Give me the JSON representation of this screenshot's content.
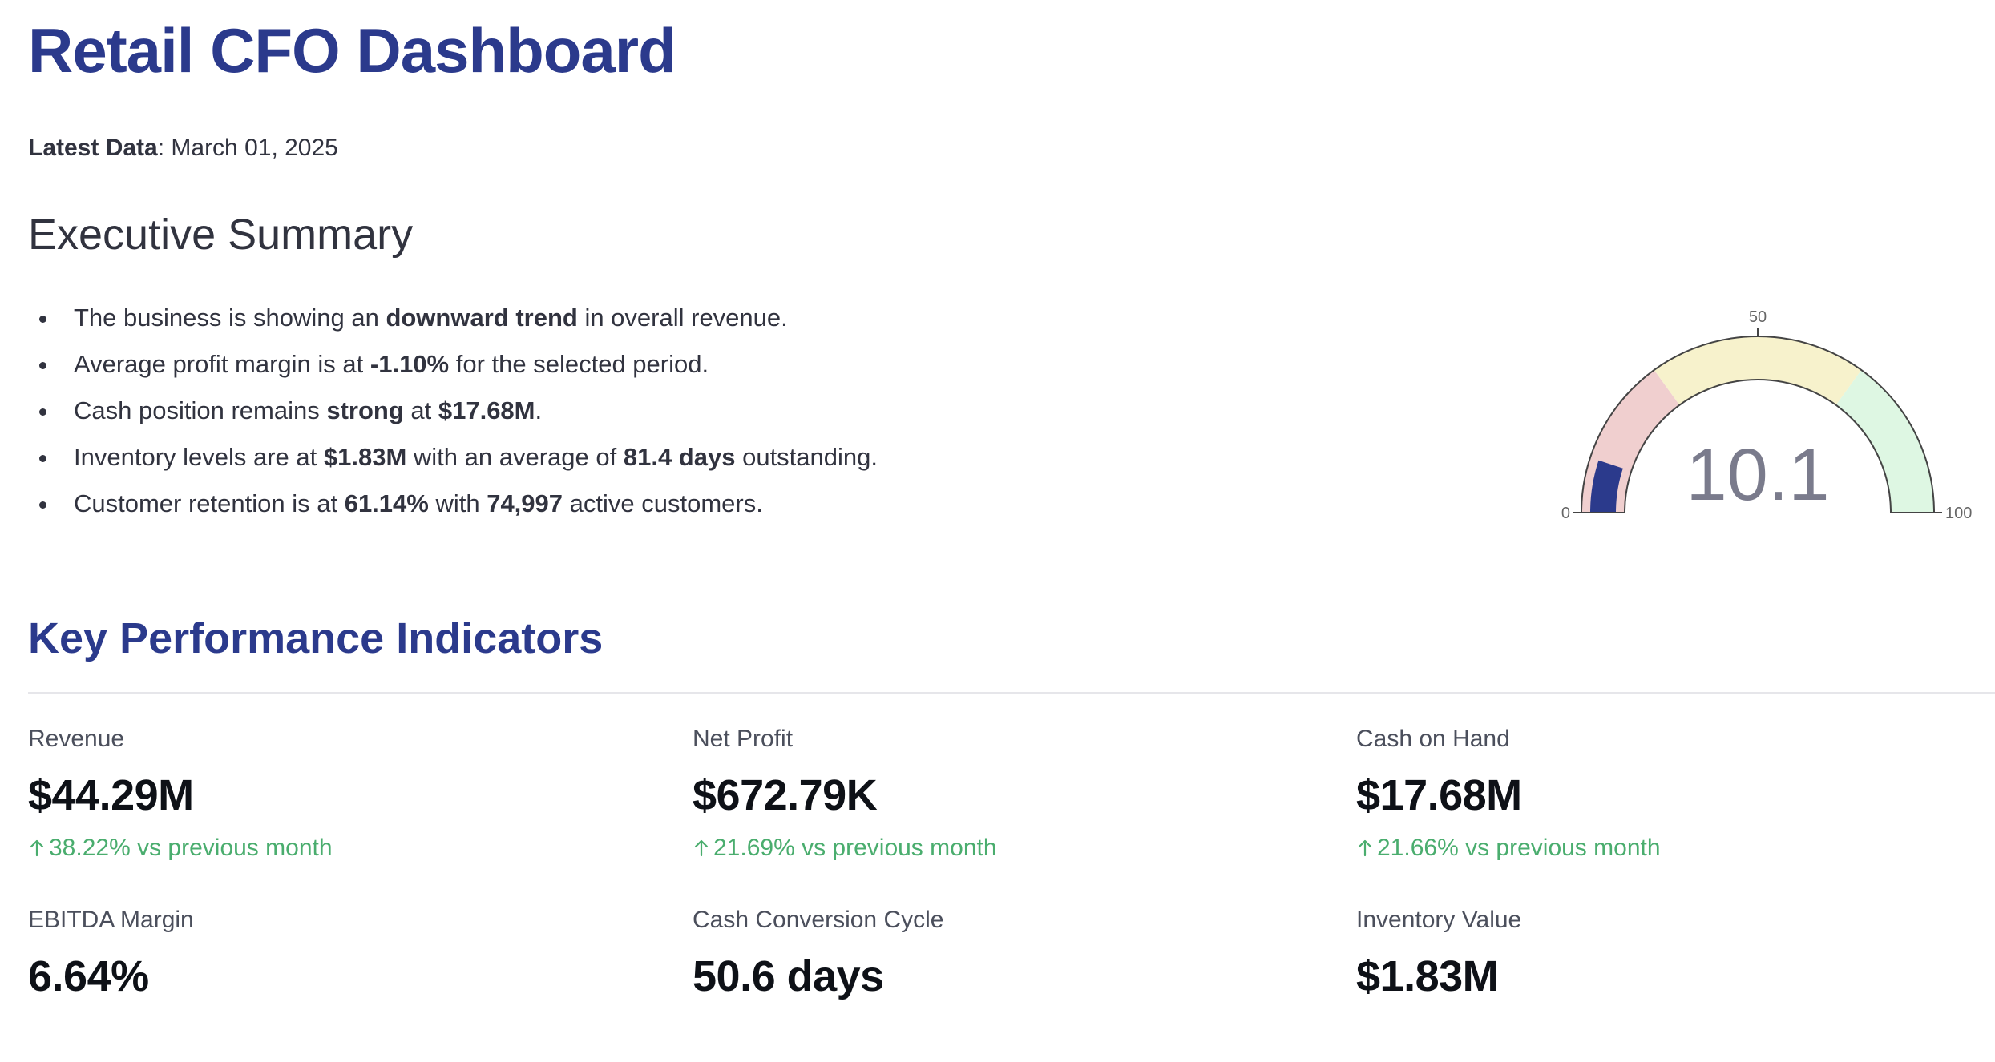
{
  "header": {
    "title": "Retail CFO Dashboard",
    "latest_label": "Latest Data",
    "latest_value": ": March 01, 2025"
  },
  "summary": {
    "title": "Executive Summary",
    "bullets": [
      {
        "a": "The business is showing an ",
        "b": "downward trend",
        "c": " in overall revenue."
      },
      {
        "a": "Average profit margin is at ",
        "b": "-1.10%",
        "c": " for the selected period."
      },
      {
        "a": "Cash position remains ",
        "b": "strong",
        "c": " at ",
        "d": "$17.68M",
        "e": "."
      },
      {
        "a": "Inventory levels are at ",
        "b": "$1.83M",
        "c": " with an average of ",
        "d": "81.4 days",
        "e": " outstanding."
      },
      {
        "a": "Customer retention is at ",
        "b": "61.14%",
        "c": " with ",
        "d": "74,997",
        "e": " active customers."
      }
    ]
  },
  "gauge": {
    "value": 10.1,
    "value_label": "10.1",
    "min": 0,
    "max": 100,
    "tick_min": "0",
    "tick_mid": "50",
    "tick_max": "100",
    "steps": [
      {
        "from": 0,
        "to": 30,
        "color": "#f0cfcf"
      },
      {
        "from": 30,
        "to": 70,
        "color": "#f7f2cc"
      },
      {
        "from": 70,
        "to": 100,
        "color": "#def7e3"
      }
    ],
    "bar_color": "#2b3a8c",
    "text_color": "#7a7b8c"
  },
  "kpi": {
    "title": "Key Performance Indicators",
    "metrics": [
      {
        "label": "Revenue",
        "value": "$44.29M",
        "delta": "38.22% vs previous month"
      },
      {
        "label": "Net Profit",
        "value": "$672.79K",
        "delta": "21.69% vs previous month"
      },
      {
        "label": "Cash on Hand",
        "value": "$17.68M",
        "delta": "21.66% vs previous month"
      },
      {
        "label": "EBITDA Margin",
        "value": "6.64%"
      },
      {
        "label": "Cash Conversion Cycle",
        "value": "50.6 days"
      },
      {
        "label": "Inventory Value",
        "value": "$1.83M"
      }
    ],
    "delta_color": "#4aad6e"
  }
}
